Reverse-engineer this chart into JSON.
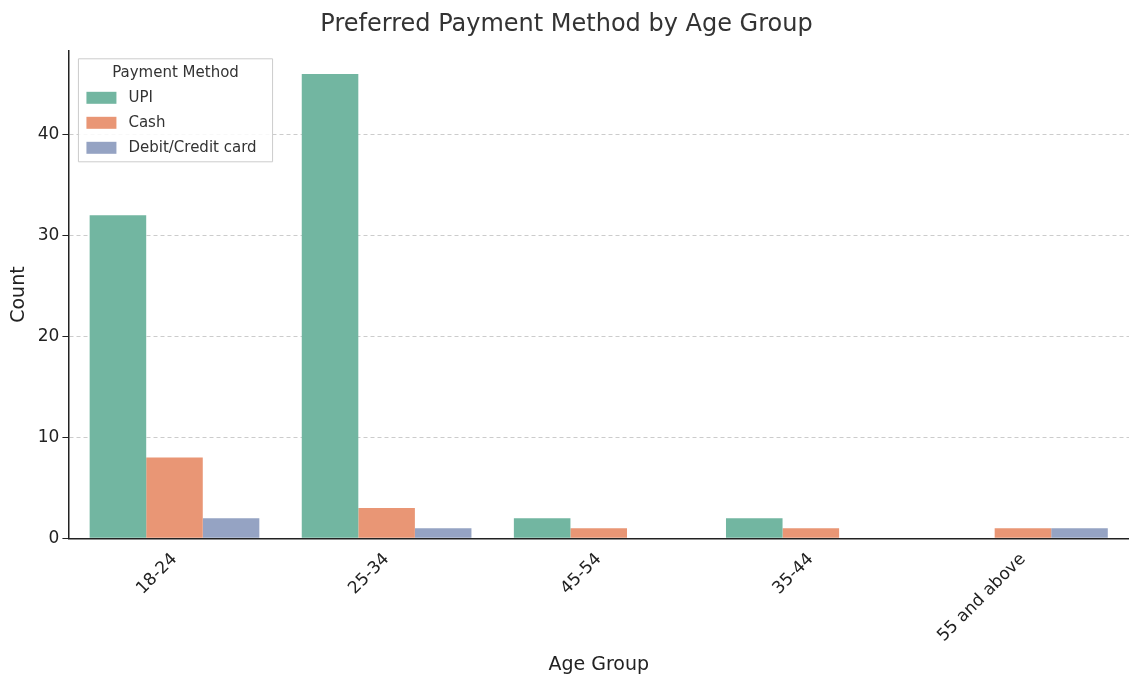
{
  "chart_data": {
    "type": "bar",
    "title": "Preferred Payment Method by Age Group",
    "xlabel": "Age Group",
    "ylabel": "Count",
    "legend_title": "Payment Method",
    "categories": [
      "18-24",
      "25-34",
      "45-54",
      "35-44",
      "55 and above"
    ],
    "series": [
      {
        "name": "UPI",
        "color": "#72b6a1",
        "values": [
          32,
          46,
          2,
          2,
          null
        ]
      },
      {
        "name": "Cash",
        "color": "#e99675",
        "values": [
          8,
          3,
          1,
          1,
          1
        ]
      },
      {
        "name": "Debit/Credit card",
        "color": "#95a3c3",
        "values": [
          2,
          1,
          null,
          null,
          1
        ]
      }
    ],
    "ylim": [
      0,
      48.3
    ],
    "yticks": [
      0,
      10,
      20,
      30,
      40
    ],
    "grid": "y",
    "legend": "top left"
  }
}
